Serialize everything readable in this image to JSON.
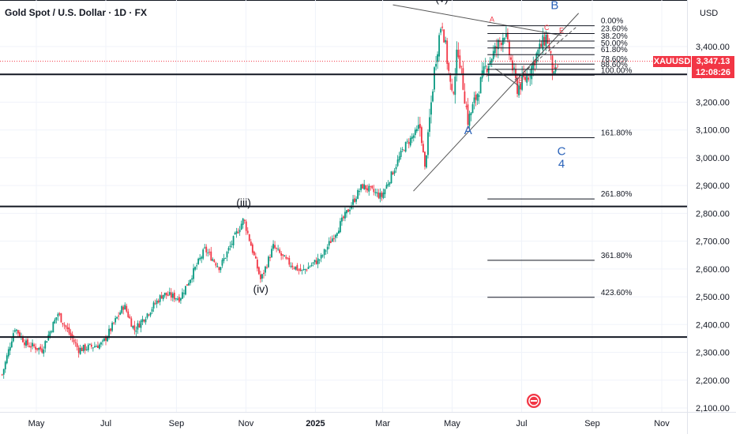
{
  "header": {
    "title": "Gold Spot / U.S. Dollar · 1D · FX",
    "currency": "USD"
  },
  "last_price": {
    "symbol": "XAUUSD",
    "price": "3,347.13",
    "countdown": "12:08:26",
    "color": "#f23645"
  },
  "chart_data": {
    "type": "candlestick",
    "symbol": "XAUUSD",
    "interval": "1D",
    "x_tick_labels": [
      "May",
      "Jul",
      "Sep",
      "Nov",
      "2025",
      "Mar",
      "May",
      "Jul",
      "Sep",
      "Nov"
    ],
    "x_ticks": [
      "2024-05",
      "2024-07",
      "2024-09",
      "2024-11",
      "2025-01",
      "2025-03",
      "2025-05",
      "2025-07",
      "2025-09",
      "2025-11"
    ],
    "y_tick_labels": [
      "2,100.00",
      "2,200.00",
      "2,300.00",
      "2,400.00",
      "2,500.00",
      "2,600.00",
      "2,700.00",
      "2,800.00",
      "2,900.00",
      "3,000.00",
      "3,100.00",
      "3,200.00",
      "3,300.00",
      "3,400.00"
    ],
    "ylim": [
      2085,
      3515
    ],
    "up_color": "#089981",
    "down_color": "#f23645",
    "price_path": [
      [
        "2024-04-01",
        2220
      ],
      [
        "2024-04-12",
        2390
      ],
      [
        "2024-04-22",
        2330
      ],
      [
        "2024-05-06",
        2310
      ],
      [
        "2024-05-20",
        2440
      ],
      [
        "2024-06-07",
        2310
      ],
      [
        "2024-06-28",
        2330
      ],
      [
        "2024-07-17",
        2470
      ],
      [
        "2024-07-26",
        2380
      ],
      [
        "2024-08-20",
        2510
      ],
      [
        "2024-09-04",
        2495
      ],
      [
        "2024-09-26",
        2670
      ],
      [
        "2024-10-09",
        2605
      ],
      [
        "2024-10-30",
        2780
      ],
      [
        "2024-11-14",
        2560
      ],
      [
        "2024-11-25",
        2680
      ],
      [
        "2024-12-06",
        2630
      ],
      [
        "2024-12-20",
        2590
      ],
      [
        "2025-01-06",
        2640
      ],
      [
        "2025-01-24",
        2770
      ],
      [
        "2025-02-11",
        2900
      ],
      [
        "2025-02-28",
        2860
      ],
      [
        "2025-03-20",
        3040
      ],
      [
        "2025-04-03",
        3110
      ],
      [
        "2025-04-07",
        2960
      ],
      [
        "2025-04-16",
        3340
      ],
      [
        "2025-04-22",
        3500
      ],
      [
        "2025-05-01",
        3210
      ],
      [
        "2025-05-06",
        3400
      ],
      [
        "2025-05-15",
        3130
      ],
      [
        "2025-05-30",
        3320
      ],
      [
        "2025-06-16",
        3450
      ],
      [
        "2025-06-27",
        3250
      ],
      [
        "2025-07-07",
        3300
      ],
      [
        "2025-07-14",
        3370
      ],
      [
        "2025-07-23",
        3440
      ],
      [
        "2025-07-30",
        3270
      ],
      [
        "2025-08-01",
        3347
      ]
    ],
    "horizontal_lines": [
      3300,
      2825,
      2355
    ],
    "last_price_line": 3347.13,
    "fib_levels": [
      {
        "label": "0.00%",
        "value": 3475
      },
      {
        "label": "23.60%",
        "value": 3447
      },
      {
        "label": "38.20%",
        "value": 3420
      },
      {
        "label": "50.00%",
        "value": 3395
      },
      {
        "label": "61.80%",
        "value": 3371
      },
      {
        "label": "78.60%",
        "value": 3337
      },
      {
        "label": "88.60%",
        "value": 3318
      },
      {
        "label": "100.00%",
        "value": 3297
      },
      {
        "label": "161.80%",
        "value": 3072
      },
      {
        "label": "261.80%",
        "value": 2852
      },
      {
        "label": "361.80%",
        "value": 2631
      },
      {
        "label": "423.60%",
        "value": 2498
      }
    ],
    "wave_labels": [
      {
        "text": "(v)",
        "x": "2025-04-22",
        "y": 3560,
        "color": "#131722",
        "size": 14
      },
      {
        "text": "(iii)",
        "x": "2024-10-30",
        "y": 2825,
        "color": "#131722",
        "size": 14
      },
      {
        "text": "(iv)",
        "x": "2024-11-14",
        "y": 2515,
        "color": "#131722",
        "size": 14
      },
      {
        "text": "A",
        "x": "2025-05-15",
        "y": 3085,
        "color": "#2962b9",
        "size": 15
      },
      {
        "text": "B",
        "x": "2025-07-30",
        "y": 3535,
        "color": "#2962b9",
        "size": 15
      },
      {
        "text": "C",
        "x": "2025-08-05",
        "y": 3010,
        "color": "#2962b9",
        "size": 15
      },
      {
        "text": "4",
        "x": "2025-08-05",
        "y": 2965,
        "color": "#2962b9",
        "size": 15
      },
      {
        "text": "A",
        "x": "2025-06-05",
        "y": 3490,
        "color": "#f23645",
        "size": 9
      },
      {
        "text": "B",
        "x": "2025-06-30",
        "y": 3270,
        "color": "#f23645",
        "size": 9
      },
      {
        "text": "C",
        "x": "2025-07-23",
        "y": 3460,
        "color": "#f23645",
        "size": 9
      },
      {
        "text": "D",
        "x": "2025-07-31",
        "y": 3320,
        "color": "#f23645",
        "size": 9
      },
      {
        "text": "E",
        "x": "2025-08-05",
        "y": 3450,
        "color": "#f23645",
        "size": 9
      }
    ]
  }
}
